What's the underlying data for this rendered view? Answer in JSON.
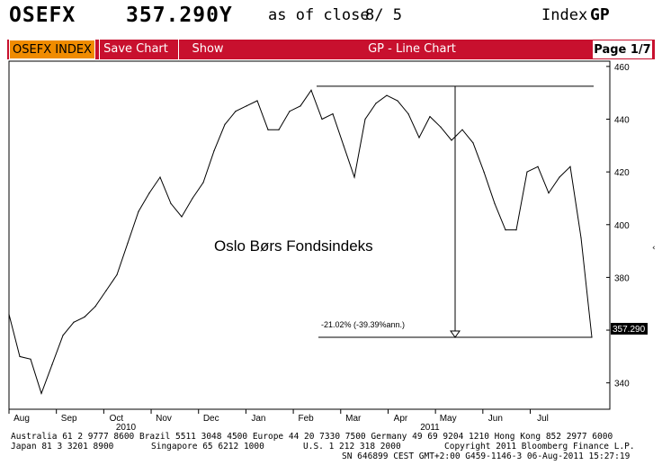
{
  "header": {
    "ticker": "OSEFX",
    "price": "357.290Y",
    "as_of": "as of close",
    "close_date": "8/ 5",
    "index_label": "Index",
    "index_value": "GP"
  },
  "toolbar": {
    "ticker_button": "OSEFX INDEX",
    "save_chart": "Save Chart",
    "show": "Show",
    "title": "GP - Line Chart",
    "page": "Page 1/7"
  },
  "chart": {
    "annotation": "Oslo Børs Fondsindeks",
    "drawdown_label": "-21.02% (-39.39%ann.)",
    "last_value_label": "357.290",
    "y_ticks": [
      "460",
      "440",
      "420",
      "400",
      "380",
      "360",
      "340"
    ],
    "x_ticks": [
      "Aug",
      "Sep",
      "Oct",
      "Nov",
      "Dec",
      "Jan",
      "Feb",
      "Mar",
      "Apr",
      "May",
      "Jun",
      "Jul"
    ],
    "year_labels": [
      "2010",
      "2011"
    ]
  },
  "chart_data": {
    "type": "line",
    "title": "GP - Line Chart",
    "series": [
      {
        "name": "OSEFX",
        "x": [
          "2010-07-26",
          "2010-08-02",
          "2010-08-09",
          "2010-08-16",
          "2010-08-23",
          "2010-08-30",
          "2010-09-06",
          "2010-09-13",
          "2010-09-20",
          "2010-09-27",
          "2010-10-04",
          "2010-10-11",
          "2010-10-18",
          "2010-10-25",
          "2010-11-01",
          "2010-11-08",
          "2010-11-15",
          "2010-11-22",
          "2010-11-29",
          "2010-12-06",
          "2010-12-13",
          "2010-12-20",
          "2010-12-27",
          "2011-01-03",
          "2011-01-10",
          "2011-01-17",
          "2011-01-24",
          "2011-01-31",
          "2011-02-07",
          "2011-02-14",
          "2011-02-21",
          "2011-02-28",
          "2011-03-07",
          "2011-03-14",
          "2011-03-21",
          "2011-03-28",
          "2011-04-04",
          "2011-04-11",
          "2011-04-18",
          "2011-04-25",
          "2011-05-02",
          "2011-05-09",
          "2011-05-16",
          "2011-05-23",
          "2011-05-30",
          "2011-06-06",
          "2011-06-13",
          "2011-06-20",
          "2011-06-27",
          "2011-07-04",
          "2011-07-11",
          "2011-07-18",
          "2011-07-25",
          "2011-08-01",
          "2011-08-05"
        ],
        "values": [
          366,
          350,
          349,
          336,
          347,
          358,
          363,
          365,
          369,
          375,
          381,
          393,
          405,
          412,
          418,
          408,
          403,
          410,
          416,
          428,
          438,
          443,
          445,
          447,
          436,
          436,
          443,
          445,
          451,
          440,
          442,
          430,
          418,
          440,
          446,
          449,
          447,
          442,
          433,
          441,
          437,
          432,
          436,
          431,
          420,
          408,
          398,
          398,
          420,
          422,
          412,
          418,
          422,
          395,
          357.29
        ]
      }
    ],
    "ylim": [
      330,
      462
    ],
    "y_ticks": [
      340,
      360,
      380,
      400,
      420,
      440,
      460
    ],
    "high_line": 452.5,
    "low_line": 357.29,
    "drawdown_pct": -21.02,
    "drawdown_annualized_pct": -39.39,
    "grid": false
  },
  "footer": {
    "row1": "Australia 61 2 9777 8600 Brazil 5511 3048 4500 Europe 44 20 7330 7500 Germany 49 69 9204 1210 Hong Kong 852 2977 6000",
    "row2a": "Japan 81 3 3201 8900",
    "row2b": "Singapore 65 6212 1000",
    "row2c": "U.S. 1 212 318 2000",
    "row2d": "Copyright 2011 Bloomberg Finance L.P.",
    "row3": "SN 646899 CEST GMT+2:00 G459-1146-3 06-Aug-2011 15:27:19"
  }
}
